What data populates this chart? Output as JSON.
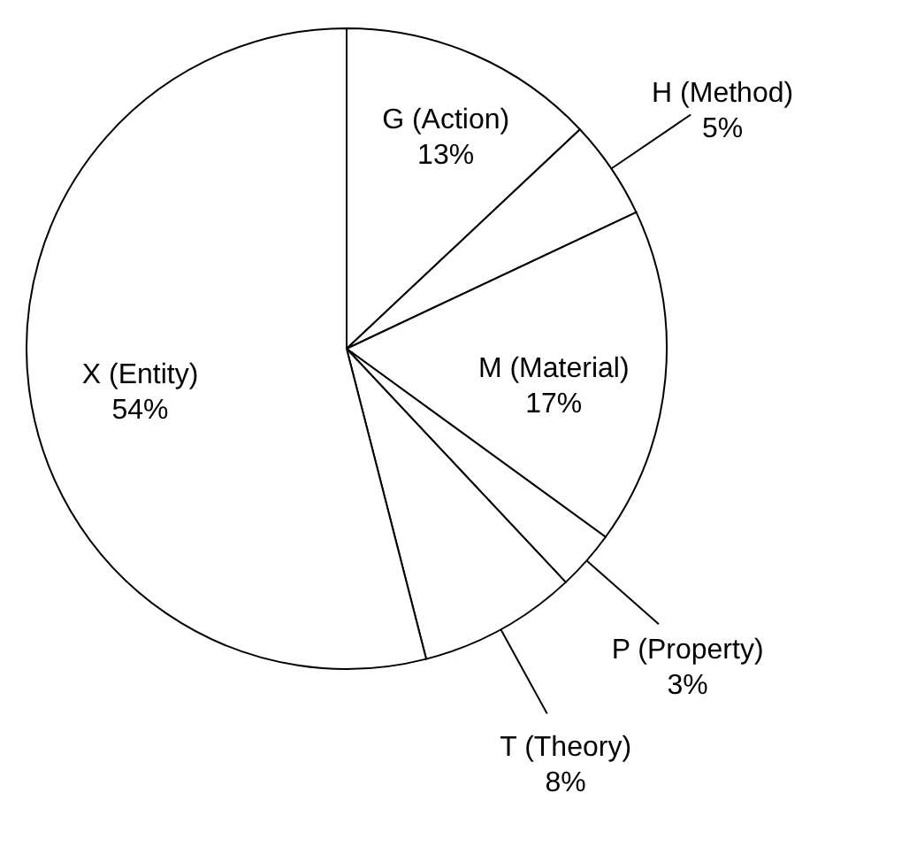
{
  "chart_data": {
    "type": "pie",
    "categories": [
      "G (Action)",
      "H (Method)",
      "M (Material)",
      "P (Property)",
      "T (Theory)",
      "X (Entity)"
    ],
    "values": [
      13,
      5,
      17,
      3,
      8,
      54
    ],
    "colors": [
      "#ffffff",
      "#ffffff",
      "#ffffff",
      "#ffffff",
      "#ffffff",
      "#ffffff"
    ],
    "value_labels": [
      "13%",
      "5%",
      "17%",
      "3%",
      "8%",
      "54%"
    ]
  }
}
